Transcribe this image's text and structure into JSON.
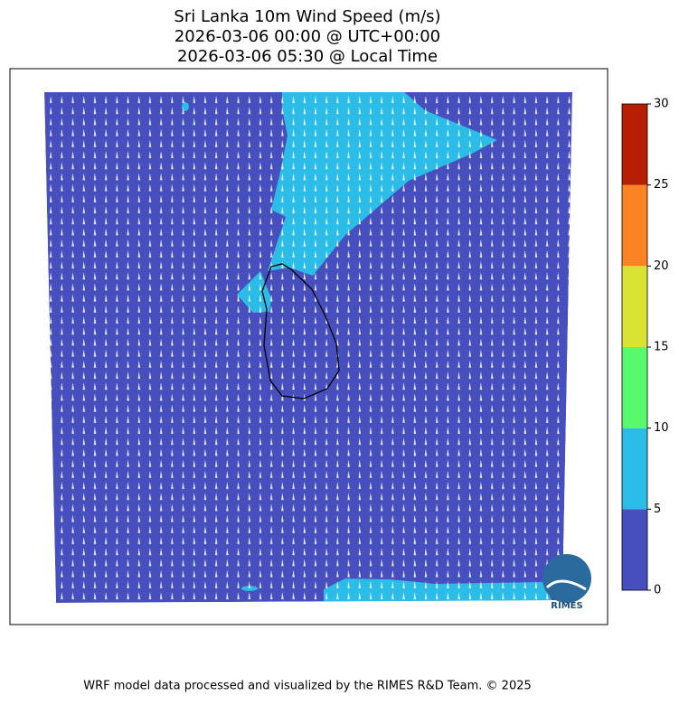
{
  "title": [
    "Sri Lanka 10m Wind Speed (m/s)",
    "2026-03-06 00:00 @ UTC+00:00",
    "2026-03-06 05:30 @ Local Time"
  ],
  "colorbar": {
    "levels": [
      0,
      5,
      10,
      15,
      20,
      25,
      30
    ],
    "colors": [
      "#464fbd",
      "#2bbce8",
      "#57f96d",
      "#d9e334",
      "#fb8323",
      "#b71f05"
    ]
  },
  "logo": "RIMES",
  "footer": "WRF model data processed and visualized by the RIMES R&D Team. © 2025"
}
